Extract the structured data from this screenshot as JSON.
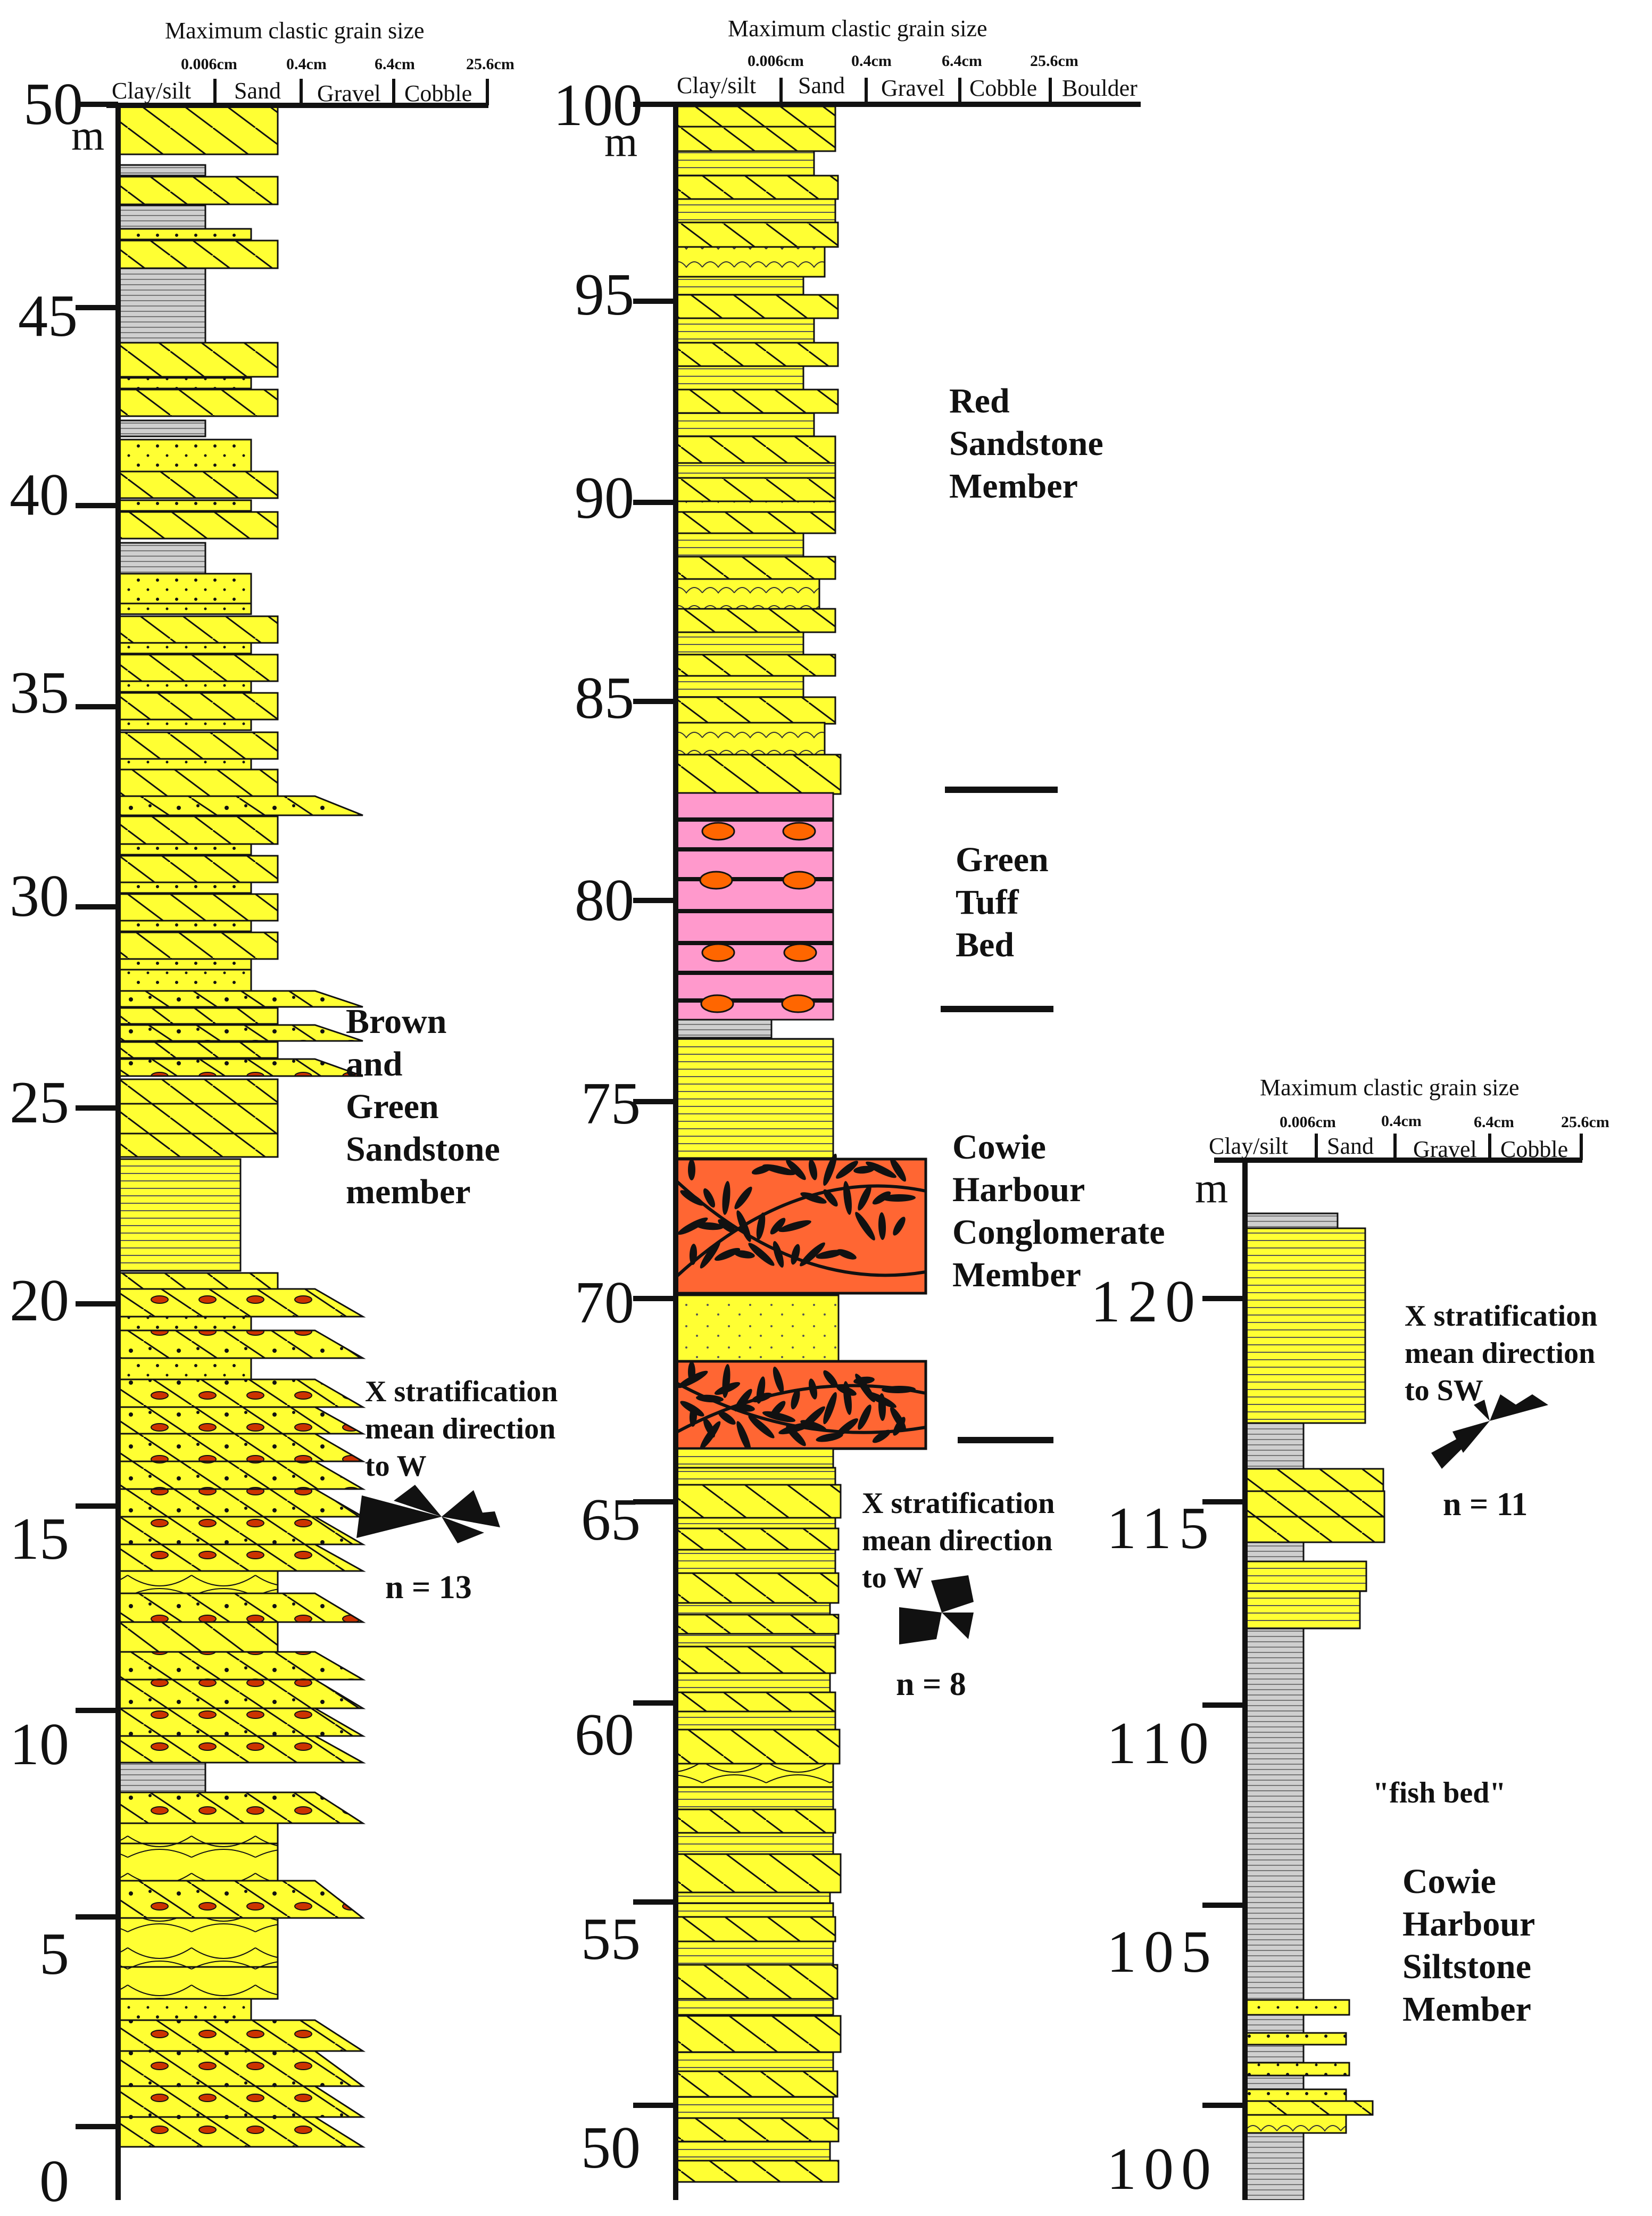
{
  "header": {
    "title": "Maximum clastic grain size",
    "size_marks": [
      "0.006cm",
      "0.4cm",
      "6.4cm",
      "25.6cm"
    ],
    "classes": [
      "Clay/silt",
      "Sand",
      "Gravel",
      "Cobble",
      "Boulder"
    ]
  },
  "unit": "m",
  "columns": [
    {
      "ticks": [
        "0",
        "5",
        "10",
        "15",
        "20",
        "25",
        "30",
        "35",
        "40",
        "45",
        "50"
      ],
      "classes": [
        "Clay/silt",
        "Sand",
        "Gravel",
        "Cobble"
      ],
      "members": [
        {
          "lines": [
            "Brown",
            "and",
            "Green",
            "Sandstone",
            "member"
          ]
        }
      ],
      "rose": {
        "lines": [
          "X stratification",
          "mean direction",
          "to W"
        ],
        "n": "n = 13"
      }
    },
    {
      "ticks": [
        "50",
        "55",
        "60",
        "65",
        "70",
        "75",
        "80",
        "85",
        "90",
        "95",
        "100"
      ],
      "classes": [
        "Clay/silt",
        "Sand",
        "Gravel",
        "Cobble",
        "Boulder"
      ],
      "members": [
        {
          "lines": [
            "Red",
            "Sandstone",
            "Member"
          ]
        },
        {
          "lines": [
            "Green",
            "Tuff",
            "Bed"
          ]
        },
        {
          "lines": [
            "Cowie",
            "Harbour",
            "Conglomerate",
            "Member"
          ]
        }
      ],
      "rose": {
        "lines": [
          "X stratification",
          "mean direction",
          "to W"
        ],
        "n": "n = 8"
      }
    },
    {
      "ticks": [
        "100",
        "105",
        "110",
        "115",
        "120"
      ],
      "classes": [
        "Clay/silt",
        "Sand",
        "Gravel",
        "Cobble"
      ],
      "members": [
        {
          "lines": [
            "\"fish bed\""
          ]
        },
        {
          "lines": [
            "Cowie",
            "Harbour",
            "Siltstone",
            "Member"
          ]
        }
      ],
      "rose": {
        "lines": [
          "X stratification",
          "mean direction",
          "to SW"
        ],
        "n": "n = 11"
      }
    }
  ],
  "colors": {
    "sandstone": "#ffff33",
    "siltstone": "#cfcfcf",
    "tuff": "#ff99cc",
    "conglomerate": "#ff6633",
    "clast": "#ff6600"
  }
}
